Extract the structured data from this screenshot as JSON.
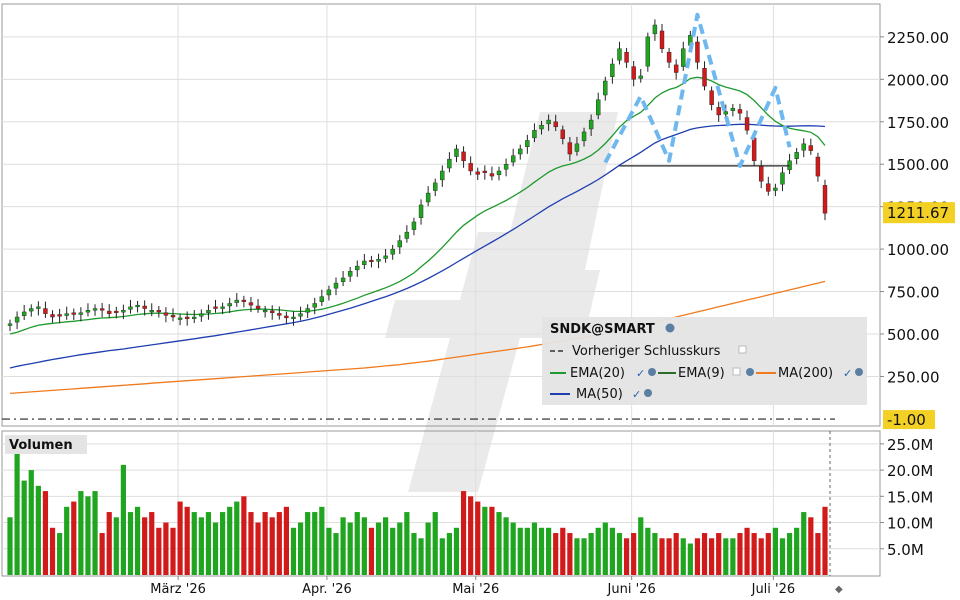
{
  "colors": {
    "up": "#1fa51f",
    "down": "#d11a1a",
    "ema20": "#1e9a2e",
    "ema9": "#2a6e2a",
    "ma50": "#1f3fb0",
    "ma200": "#f07a1e",
    "pattern": "#6fb8ef",
    "last_price_label": "#f2d024",
    "grid": "#dedede"
  },
  "chart_data": [
    {
      "type": "candlestick",
      "symbol": "SNDK@SMART",
      "ylim": [
        -30,
        2420
      ],
      "yticks": [
        250,
        500,
        750,
        1000,
        1250,
        1500,
        1750,
        2000,
        2250
      ],
      "ytick_labels": [
        "250.00",
        "500.00",
        "750.00",
        "1000.00",
        "1250.00",
        "1500.00",
        "1750.00",
        "2000.00",
        "2250.00"
      ],
      "x_ticks": [
        "März '26",
        "Apr. '26",
        "Mai '26",
        "Juni '26",
        "Juli '26"
      ],
      "last_price": "1211.67",
      "previous_close_label": "-1.00",
      "previous_close": -1.0,
      "neckline": 1490,
      "legend": {
        "title": "SNDK@SMART",
        "items": [
          "Vorheriger Schlusskurs",
          "EMA(20)",
          "EMA(9)",
          "MA(200)",
          "MA(50)"
        ]
      },
      "close": [
        560,
        600,
        630,
        650,
        660,
        620,
        600,
        605,
        620,
        615,
        625,
        640,
        650,
        640,
        620,
        625,
        640,
        660,
        670,
        650,
        640,
        630,
        610,
        600,
        595,
        590,
        600,
        620,
        640,
        650,
        660,
        680,
        700,
        690,
        670,
        650,
        640,
        625,
        610,
        595,
        600,
        620,
        650,
        680,
        720,
        760,
        800,
        830,
        870,
        900,
        930,
        925,
        940,
        960,
        1000,
        1050,
        1100,
        1160,
        1260,
        1330,
        1390,
        1460,
        1530,
        1590,
        1520,
        1460,
        1440,
        1450,
        1430,
        1460,
        1500,
        1550,
        1590,
        1640,
        1700,
        1730,
        1760,
        1720,
        1650,
        1560,
        1620,
        1690,
        1760,
        1880,
        1990,
        2090,
        2180,
        2100,
        2000,
        2020,
        2250,
        2320,
        2180,
        2100,
        2040,
        2180,
        2260,
        2100,
        1960,
        1850,
        1790,
        1810,
        1830,
        1800,
        1700,
        1520,
        1400,
        1340,
        1360,
        1450,
        1520,
        1570,
        1620,
        1580,
        1430,
        1211.67
      ],
      "ema20": [
        500,
        510,
        525,
        540,
        552,
        558,
        563,
        567,
        572,
        575,
        580,
        585,
        590,
        594,
        596,
        599,
        603,
        609,
        615,
        619,
        622,
        623,
        622,
        620,
        618,
        616,
        615,
        616,
        618,
        621,
        625,
        630,
        637,
        642,
        645,
        646,
        646,
        644,
        642,
        638,
        634,
        633,
        634,
        639,
        646,
        656,
        668,
        681,
        696,
        711,
        728,
        742,
        757,
        772,
        790,
        810,
        834,
        860,
        895,
        930,
        968,
        1010,
        1055,
        1100,
        1140,
        1170,
        1200,
        1225,
        1245,
        1265,
        1286,
        1311,
        1336,
        1363,
        1394,
        1424,
        1453,
        1475,
        1490,
        1500,
        1513,
        1530,
        1552,
        1583,
        1622,
        1668,
        1718,
        1756,
        1782,
        1806,
        1845,
        1890,
        1920,
        1940,
        1952,
        1975,
        2005,
        2012,
        2006,
        1990,
        1969,
        1954,
        1943,
        1931,
        1910,
        1875,
        1832,
        1788,
        1752,
        1728,
        1712,
        1703,
        1697,
        1688,
        1662,
        1610
      ],
      "ma50": [
        300,
        310,
        318,
        326,
        334,
        342,
        350,
        357,
        364,
        371,
        378,
        384,
        390,
        396,
        402,
        407,
        412,
        418,
        424,
        430,
        436,
        442,
        448,
        454,
        460,
        466,
        472,
        478,
        484,
        490,
        497,
        504,
        511,
        518,
        525,
        532,
        539,
        546,
        553,
        560,
        567,
        575,
        584,
        594,
        605,
        616,
        628,
        640,
        652,
        665,
        678,
        692,
        706,
        720,
        735,
        751,
        768,
        786,
        806,
        827,
        849,
        872,
        896,
        921,
        946,
        970,
        994,
        1018,
        1042,
        1066,
        1091,
        1116,
        1142,
        1168,
        1195,
        1222,
        1249,
        1273,
        1297,
        1318,
        1340,
        1362,
        1385,
        1410,
        1437,
        1465,
        1494,
        1520,
        1545,
        1570,
        1598,
        1625,
        1645,
        1660,
        1675,
        1690,
        1705,
        1714,
        1720,
        1725,
        1728,
        1730,
        1733,
        1735,
        1735,
        1733,
        1730,
        1727,
        1725,
        1724,
        1724,
        1725,
        1726,
        1726,
        1725,
        1722
      ],
      "ma200": [
        150,
        153,
        156,
        159,
        162,
        165,
        168,
        171,
        174,
        177,
        180,
        183,
        186,
        189,
        192,
        195,
        198,
        201,
        204,
        207,
        210,
        213,
        216,
        219,
        222,
        225,
        228,
        231,
        234,
        237,
        240,
        243,
        246,
        249,
        252,
        255,
        258,
        261,
        264,
        267,
        270,
        273,
        276,
        279,
        282,
        285,
        288,
        291,
        294,
        297,
        300,
        304,
        308,
        312,
        316,
        320,
        325,
        330,
        335,
        340,
        346,
        352,
        358,
        364,
        370,
        376,
        382,
        388,
        394,
        400,
        406,
        412,
        418,
        424,
        431,
        438,
        445,
        452,
        459,
        466,
        473,
        480,
        488,
        496,
        504,
        513,
        522,
        531,
        540,
        550,
        560,
        570,
        580,
        590,
        600,
        610,
        620,
        630,
        640,
        650,
        660,
        670,
        680,
        690,
        700,
        710,
        720,
        730,
        740,
        750,
        760,
        770,
        780,
        790,
        800,
        810
      ]
    },
    {
      "type": "bar",
      "title": "Volumen",
      "ylim": [
        0,
        26.5
      ],
      "yticks": [
        5,
        10,
        15,
        20,
        25
      ],
      "ytick_labels": [
        "5.0M",
        "10.0M",
        "15.0M",
        "20.0M",
        "25.0M"
      ],
      "values": [
        11,
        26,
        18,
        20,
        17,
        16,
        9,
        8,
        13,
        14,
        16,
        15,
        16,
        8,
        12,
        11,
        21,
        12,
        13,
        11,
        12,
        9,
        10,
        9,
        14,
        13,
        12,
        11,
        12,
        10,
        12,
        13,
        14,
        15,
        12,
        10,
        12,
        11,
        12,
        13,
        9,
        10,
        12,
        12,
        13,
        9,
        8,
        11,
        10,
        12,
        11,
        9,
        10,
        11,
        9,
        10,
        12,
        8,
        7,
        10,
        12,
        7,
        8,
        9,
        16,
        15,
        14,
        13,
        13,
        12,
        11,
        10,
        9,
        9,
        10,
        9,
        9,
        8,
        9,
        8,
        7,
        7,
        8,
        9,
        10,
        9,
        8,
        7,
        8,
        11,
        9,
        8,
        7,
        7,
        8,
        7,
        6,
        7,
        8,
        7,
        8,
        7,
        7,
        8,
        9,
        8,
        7,
        8,
        9,
        7,
        8,
        9,
        12,
        11,
        8,
        13
      ]
    }
  ]
}
